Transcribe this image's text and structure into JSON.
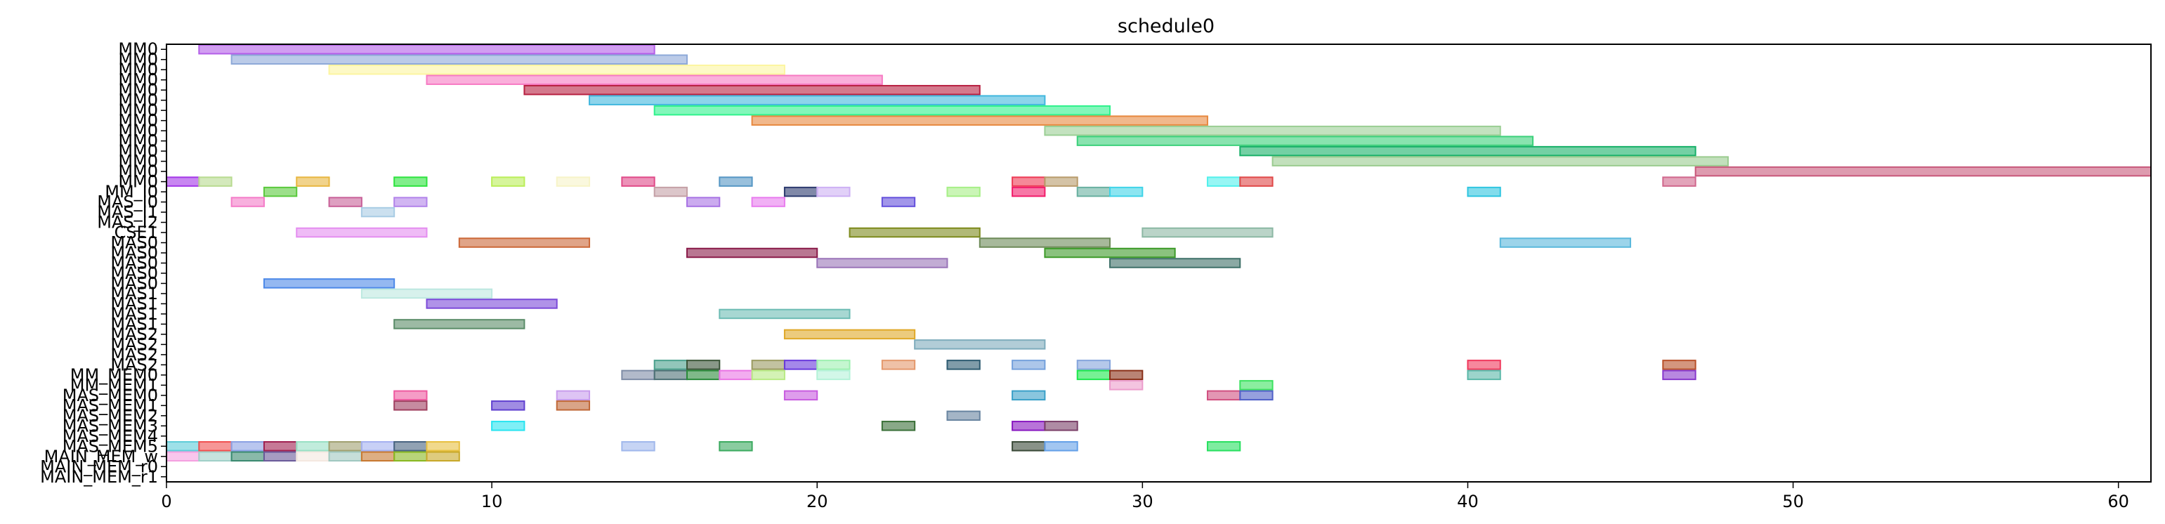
{
  "chart_data": {
    "type": "gantt",
    "title": "schedule0",
    "xlabel": "",
    "ylabel": "",
    "xlim": [
      0,
      61
    ],
    "xticks": [
      0,
      10,
      20,
      30,
      40,
      50,
      60
    ],
    "grid": false,
    "rows": [
      "MM0",
      "MM0",
      "MM0",
      "MM0",
      "MM0",
      "MM0",
      "MM0",
      "MM0",
      "MM0",
      "MM0",
      "MM0",
      "MM0",
      "MM0",
      "MM0",
      "MM_I0",
      "MAS_I0",
      "MAS_I1",
      "MAS_I2",
      "CSE1",
      "MAS0",
      "MAS0",
      "MAS0",
      "MAS0",
      "MAS0",
      "MAS1",
      "MAS1",
      "MAS1",
      "MAS1",
      "MAS2",
      "MAS2",
      "MAS2",
      "MAS2",
      "MM_MEM0",
      "MM_MEM1",
      "MAS_MEM0",
      "MAS_MEM1",
      "MAS_MEM2",
      "MAS_MEM3",
      "MAS_MEM4",
      "MAS_MEM5",
      "MAIN_MEM_w",
      "MAIN_MEM_r0",
      "MAIN_MEM_r1"
    ],
    "tasks": [
      {
        "row": 0,
        "start": 1,
        "end": 15,
        "color": "#b35ee8"
      },
      {
        "row": 1,
        "start": 2,
        "end": 16,
        "color": "#8ea9d8"
      },
      {
        "row": 2,
        "start": 5,
        "end": 19,
        "color": "#fcf5a0"
      },
      {
        "row": 3,
        "start": 8,
        "end": 22,
        "color": "#f77ac3"
      },
      {
        "row": 4,
        "start": 11,
        "end": 25,
        "color": "#b82041"
      },
      {
        "row": 5,
        "start": 13,
        "end": 27,
        "color": "#41b7de"
      },
      {
        "row": 6,
        "start": 15,
        "end": 29,
        "color": "#2ef28c"
      },
      {
        "row": 7,
        "start": 18,
        "end": 32,
        "color": "#e7883f"
      },
      {
        "row": 8,
        "start": 27,
        "end": 41,
        "color": "#9bcf94"
      },
      {
        "row": 9,
        "start": 28,
        "end": 42,
        "color": "#3bd07a"
      },
      {
        "row": 10,
        "start": 33,
        "end": 47,
        "color": "#18b068"
      },
      {
        "row": 11,
        "start": 34,
        "end": 48,
        "color": "#9acb8f"
      },
      {
        "row": 12,
        "start": 47,
        "end": 61,
        "color": "#c8587a"
      },
      {
        "row": 13,
        "start": 0,
        "end": 1,
        "color": "#a437e8"
      },
      {
        "row": 13,
        "start": 1,
        "end": 2,
        "color": "#b8db90"
      },
      {
        "row": 13,
        "start": 4,
        "end": 5,
        "color": "#e8b640"
      },
      {
        "row": 13,
        "start": 7,
        "end": 8,
        "color": "#2de33e"
      },
      {
        "row": 13,
        "start": 10,
        "end": 11,
        "color": "#baee58"
      },
      {
        "row": 13,
        "start": 12,
        "end": 13,
        "color": "#f7f4c8"
      },
      {
        "row": 13,
        "start": 14,
        "end": 15,
        "color": "#e04a88"
      },
      {
        "row": 13,
        "start": 17,
        "end": 18,
        "color": "#5596c4"
      },
      {
        "row": 13,
        "start": 26,
        "end": 27,
        "color": "#ee3a54"
      },
      {
        "row": 13,
        "start": 27,
        "end": 28,
        "color": "#b89b6a"
      },
      {
        "row": 13,
        "start": 32,
        "end": 33,
        "color": "#52f0ec"
      },
      {
        "row": 13,
        "start": 33,
        "end": 34,
        "color": "#e04848"
      },
      {
        "row": 13,
        "start": 46,
        "end": 47,
        "color": "#d0678c"
      },
      {
        "row": 14,
        "start": 3,
        "end": 4,
        "color": "#5ac93c"
      },
      {
        "row": 14,
        "start": 15,
        "end": 16,
        "color": "#c4a0a6"
      },
      {
        "row": 14,
        "start": 19,
        "end": 20,
        "color": "#2b3a6e"
      },
      {
        "row": 14,
        "start": 20,
        "end": 21,
        "color": "#cdb0f4"
      },
      {
        "row": 14,
        "start": 24,
        "end": 25,
        "color": "#a6ef86"
      },
      {
        "row": 14,
        "start": 26,
        "end": 27,
        "color": "#f21c6a"
      },
      {
        "row": 14,
        "start": 28,
        "end": 29,
        "color": "#68b0a0"
      },
      {
        "row": 14,
        "start": 29,
        "end": 30,
        "color": "#3fd3e8"
      },
      {
        "row": 14,
        "start": 40,
        "end": 41,
        "color": "#2ec5e0"
      },
      {
        "row": 15,
        "start": 2,
        "end": 3,
        "color": "#f47cc8"
      },
      {
        "row": 15,
        "start": 5,
        "end": 6,
        "color": "#c86098"
      },
      {
        "row": 15,
        "start": 7,
        "end": 8,
        "color": "#b283ea"
      },
      {
        "row": 15,
        "start": 16,
        "end": 17,
        "color": "#a873e4"
      },
      {
        "row": 15,
        "start": 18,
        "end": 19,
        "color": "#e87cee"
      },
      {
        "row": 15,
        "start": 22,
        "end": 23,
        "color": "#6450dc"
      },
      {
        "row": 16,
        "start": 6,
        "end": 7,
        "color": "#a8cce4"
      },
      {
        "row": 18,
        "start": 4,
        "end": 8,
        "color": "#e48ef0"
      },
      {
        "row": 18,
        "start": 21,
        "end": 25,
        "color": "#7d8a1c"
      },
      {
        "row": 18,
        "start": 30,
        "end": 34,
        "color": "#8cb8a4"
      },
      {
        "row": 19,
        "start": 9,
        "end": 13,
        "color": "#cc6838"
      },
      {
        "row": 19,
        "start": 25,
        "end": 29,
        "color": "#6d8a58"
      },
      {
        "row": 19,
        "start": 41,
        "end": 45,
        "color": "#5ab8dc"
      },
      {
        "row": 20,
        "start": 16,
        "end": 20,
        "color": "#8a1c4a"
      },
      {
        "row": 20,
        "start": 27,
        "end": 31,
        "color": "#3c9a28"
      },
      {
        "row": 21,
        "start": 20,
        "end": 24,
        "color": "#9a74b8"
      },
      {
        "row": 21,
        "start": 29,
        "end": 33,
        "color": "#3e7068"
      },
      {
        "row": 23,
        "start": 3,
        "end": 7,
        "color": "#4c88e8"
      },
      {
        "row": 24,
        "start": 6,
        "end": 10,
        "color": "#bce8e0"
      },
      {
        "row": 25,
        "start": 8,
        "end": 12,
        "color": "#7b4ad8"
      },
      {
        "row": 26,
        "start": 17,
        "end": 21,
        "color": "#6dbcb4"
      },
      {
        "row": 27,
        "start": 7,
        "end": 11,
        "color": "#5a8c68"
      },
      {
        "row": 28,
        "start": 19,
        "end": 23,
        "color": "#e0a828"
      },
      {
        "row": 29,
        "start": 23,
        "end": 27,
        "color": "#7eacbc"
      },
      {
        "row": 31,
        "start": 15,
        "end": 16,
        "color": "#4aa08c"
      },
      {
        "row": 31,
        "start": 16,
        "end": 17,
        "color": "#3a5438"
      },
      {
        "row": 31,
        "start": 18,
        "end": 19,
        "color": "#9a9a60"
      },
      {
        "row": 31,
        "start": 19,
        "end": 20,
        "color": "#6838dc"
      },
      {
        "row": 31,
        "start": 20,
        "end": 21,
        "color": "#9cf0b0"
      },
      {
        "row": 31,
        "start": 22,
        "end": 23,
        "color": "#e4986c"
      },
      {
        "row": 31,
        "start": 24,
        "end": 25,
        "color": "#2c5a70"
      },
      {
        "row": 31,
        "start": 26,
        "end": 27,
        "color": "#74a0dc"
      },
      {
        "row": 31,
        "start": 28,
        "end": 29,
        "color": "#84a4dc"
      },
      {
        "row": 31,
        "start": 40,
        "end": 41,
        "color": "#f0385c"
      },
      {
        "row": 31,
        "start": 46,
        "end": 47,
        "color": "#b85028"
      },
      {
        "row": 32,
        "start": 14,
        "end": 15,
        "color": "#7e8ca6"
      },
      {
        "row": 32,
        "start": 15,
        "end": 16,
        "color": "#4c7074"
      },
      {
        "row": 32,
        "start": 16,
        "end": 17,
        "color": "#2a8a3a"
      },
      {
        "row": 32,
        "start": 17,
        "end": 18,
        "color": "#ea74e4"
      },
      {
        "row": 32,
        "start": 18,
        "end": 19,
        "color": "#b8ea84"
      },
      {
        "row": 32,
        "start": 20,
        "end": 21,
        "color": "#b4f2d8"
      },
      {
        "row": 32,
        "start": 28,
        "end": 29,
        "color": "#1ce84c"
      },
      {
        "row": 32,
        "start": 29,
        "end": 30,
        "color": "#8a3018"
      },
      {
        "row": 32,
        "start": 40,
        "end": 41,
        "color": "#5ab8a8"
      },
      {
        "row": 32,
        "start": 46,
        "end": 47,
        "color": "#8838cc"
      },
      {
        "row": 33,
        "start": 29,
        "end": 30,
        "color": "#ec9ccc"
      },
      {
        "row": 33,
        "start": 33,
        "end": 34,
        "color": "#3ce260"
      },
      {
        "row": 34,
        "start": 7,
        "end": 8,
        "color": "#ee5aa0"
      },
      {
        "row": 34,
        "start": 12,
        "end": 13,
        "color": "#c89cec"
      },
      {
        "row": 34,
        "start": 19,
        "end": 20,
        "color": "#c85ce0"
      },
      {
        "row": 34,
        "start": 26,
        "end": 27,
        "color": "#3aa0c8"
      },
      {
        "row": 34,
        "start": 32,
        "end": 33,
        "color": "#d05080"
      },
      {
        "row": 34,
        "start": 33,
        "end": 34,
        "color": "#5060c8"
      },
      {
        "row": 35,
        "start": 7,
        "end": 8,
        "color": "#a04060"
      },
      {
        "row": 35,
        "start": 10,
        "end": 11,
        "color": "#6040d0"
      },
      {
        "row": 35,
        "start": 12,
        "end": 13,
        "color": "#c06838"
      },
      {
        "row": 36,
        "start": 24,
        "end": 25,
        "color": "#6884a0"
      },
      {
        "row": 37,
        "start": 10,
        "end": 11,
        "color": "#28e4f0"
      },
      {
        "row": 37,
        "start": 22,
        "end": 23,
        "color": "#3a7038"
      },
      {
        "row": 37,
        "start": 26,
        "end": 27,
        "color": "#8818c0"
      },
      {
        "row": 37,
        "start": 27,
        "end": 28,
        "color": "#7a4068"
      },
      {
        "row": 39,
        "start": 0,
        "end": 1,
        "color": "#5cccd8"
      },
      {
        "row": 39,
        "start": 1,
        "end": 2,
        "color": "#f05050"
      },
      {
        "row": 39,
        "start": 2,
        "end": 3,
        "color": "#8aa0e4"
      },
      {
        "row": 39,
        "start": 3,
        "end": 4,
        "color": "#a02050"
      },
      {
        "row": 39,
        "start": 4,
        "end": 5,
        "color": "#98e0c4"
      },
      {
        "row": 39,
        "start": 5,
        "end": 6,
        "color": "#a0a070"
      },
      {
        "row": 39,
        "start": 6,
        "end": 7,
        "color": "#a4b0f0"
      },
      {
        "row": 39,
        "start": 7,
        "end": 8,
        "color": "#486480"
      },
      {
        "row": 39,
        "start": 8,
        "end": 9,
        "color": "#e8c040"
      },
      {
        "row": 39,
        "start": 14,
        "end": 15,
        "color": "#a0b8ec"
      },
      {
        "row": 39,
        "start": 17,
        "end": 18,
        "color": "#3caa60"
      },
      {
        "row": 39,
        "start": 26,
        "end": 27,
        "color": "#3a4a38"
      },
      {
        "row": 39,
        "start": 27,
        "end": 28,
        "color": "#64a0e8"
      },
      {
        "row": 39,
        "start": 32,
        "end": 33,
        "color": "#28e060"
      },
      {
        "row": 40,
        "start": 0,
        "end": 1,
        "color": "#f4a0e0"
      },
      {
        "row": 40,
        "start": 1,
        "end": 2,
        "color": "#a0d0c8"
      },
      {
        "row": 40,
        "start": 2,
        "end": 3,
        "color": "#3a8a70"
      },
      {
        "row": 40,
        "start": 3,
        "end": 4,
        "color": "#6a5a9a"
      },
      {
        "row": 40,
        "start": 4,
        "end": 5,
        "color": "#f4e8e0"
      },
      {
        "row": 40,
        "start": 5,
        "end": 6,
        "color": "#a0c8c0"
      },
      {
        "row": 40,
        "start": 6,
        "end": 7,
        "color": "#c87830"
      },
      {
        "row": 40,
        "start": 7,
        "end": 8,
        "color": "#88b820"
      },
      {
        "row": 40,
        "start": 8,
        "end": 9,
        "color": "#c8a828"
      }
    ]
  }
}
